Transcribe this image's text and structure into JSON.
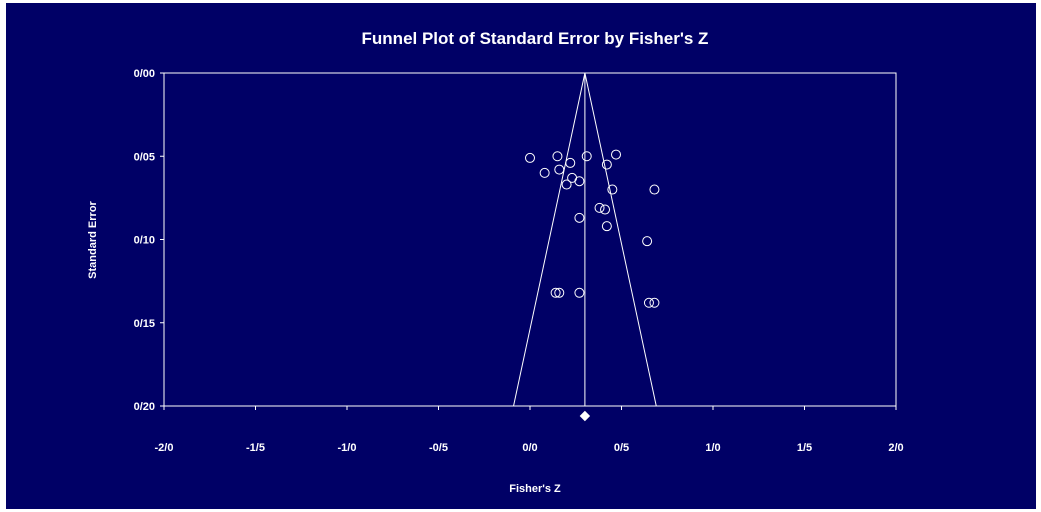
{
  "chart_data": {
    "type": "scatter",
    "title": "Funnel Plot of Standard Error by Fisher's Z",
    "xlabel": "Fisher's Z",
    "ylabel": "Standard Error",
    "xlim": [
      -2.0,
      2.0
    ],
    "ylim": [
      0.0,
      0.2
    ],
    "y_inverted": true,
    "x_ticks": [
      -2.0,
      -1.5,
      -1.0,
      -0.5,
      0.0,
      0.5,
      1.0,
      1.5,
      2.0
    ],
    "x_tick_labels": [
      "-2/0",
      "-1/5",
      "-1/0",
      "-0/5",
      "0/0",
      "0/5",
      "1/0",
      "1/5",
      "2/0"
    ],
    "y_ticks": [
      0.0,
      0.05,
      0.1,
      0.15,
      0.2
    ],
    "y_tick_labels": [
      "0/00",
      "0/05",
      "0/10",
      "0/15",
      "0/20"
    ],
    "summary_effect": 0.3,
    "funnel_base_se": 0.2,
    "funnel_half_width_at_base": 0.39,
    "colors": {
      "background": "#000066",
      "foreground": "#ffffff"
    },
    "series": [
      {
        "points": [
          {
            "x": 0.0,
            "se": 0.051
          },
          {
            "x": 0.08,
            "se": 0.06
          },
          {
            "x": 0.15,
            "se": 0.05
          },
          {
            "x": 0.16,
            "se": 0.058
          },
          {
            "x": 0.2,
            "se": 0.067
          },
          {
            "x": 0.22,
            "se": 0.054
          },
          {
            "x": 0.23,
            "se": 0.063
          },
          {
            "x": 0.27,
            "se": 0.065
          },
          {
            "x": 0.31,
            "se": 0.05
          },
          {
            "x": 0.27,
            "se": 0.087
          },
          {
            "x": 0.38,
            "se": 0.081
          },
          {
            "x": 0.41,
            "se": 0.082
          },
          {
            "x": 0.42,
            "se": 0.055
          },
          {
            "x": 0.45,
            "se": 0.07
          },
          {
            "x": 0.47,
            "se": 0.049
          },
          {
            "x": 0.42,
            "se": 0.092
          },
          {
            "x": 0.68,
            "se": 0.07
          },
          {
            "x": 0.64,
            "se": 0.101
          },
          {
            "x": 0.14,
            "se": 0.132
          },
          {
            "x": 0.16,
            "se": 0.132
          },
          {
            "x": 0.27,
            "se": 0.132
          },
          {
            "x": 0.65,
            "se": 0.138
          },
          {
            "x": 0.68,
            "se": 0.138
          }
        ]
      }
    ]
  }
}
